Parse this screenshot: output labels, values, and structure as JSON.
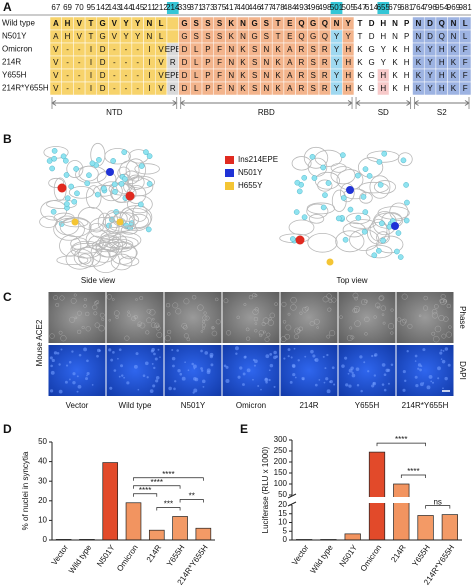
{
  "panel_labels": [
    "A",
    "B",
    "C",
    "D",
    "E"
  ],
  "alignment": {
    "positions": [
      67,
      69,
      70,
      95,
      142,
      143,
      144,
      145,
      211,
      212,
      214,
      339,
      371,
      373,
      375,
      417,
      440,
      446,
      477,
      478,
      484,
      493,
      496,
      498,
      501,
      505,
      547,
      614,
      655,
      679,
      681,
      764,
      796,
      954,
      969,
      981
    ],
    "highlight": [
      214,
      501,
      655
    ],
    "domains": [
      {
        "name": "NTD",
        "span": 11,
        "color": "#f7d36b"
      },
      {
        "name": "RBD",
        "span": 15,
        "color": "#f3b48c"
      },
      {
        "name": "SD",
        "span": 5,
        "color": "#ffffff"
      },
      {
        "name": "S2",
        "span": 5,
        "color": "#9db3e2"
      }
    ],
    "rows": [
      {
        "name": "Wild type",
        "residues": [
          "A",
          "H",
          "V",
          "T",
          "G",
          "V",
          "Y",
          "Y",
          "N",
          "L",
          null,
          "G",
          "S",
          "S",
          "S",
          "K",
          "N",
          "G",
          "S",
          "T",
          "E",
          "Q",
          "G",
          "Q",
          "N",
          "Y",
          "T",
          "D",
          "H",
          "N",
          "P",
          "N",
          "D",
          "Q",
          "N",
          "L"
        ]
      },
      {
        "name": "N501Y",
        "residues": [
          "A",
          "H",
          "V",
          "T",
          "G",
          "V",
          "Y",
          "Y",
          "N",
          "L",
          null,
          "G",
          "S",
          "S",
          "S",
          "K",
          "N",
          "G",
          "S",
          "T",
          "E",
          "Q",
          "G",
          "Q",
          "Y",
          "Y",
          "T",
          "D",
          "H",
          "N",
          "P",
          "N",
          "D",
          "Q",
          "N",
          "L"
        ]
      },
      {
        "name": "Omicron",
        "residues": [
          "V",
          "-",
          "-",
          "I",
          "D",
          "-",
          "-",
          "-",
          "I",
          "V",
          "EPE",
          "D",
          "L",
          "P",
          "F",
          "N",
          "K",
          "S",
          "N",
          "K",
          "A",
          "R",
          "S",
          "R",
          "Y",
          "H",
          "K",
          "G",
          "Y",
          "K",
          "H",
          "K",
          "Y",
          "H",
          "K",
          "F"
        ]
      },
      {
        "name": "214R",
        "residues": [
          "V",
          "-",
          "-",
          "I",
          "D",
          "-",
          "-",
          "-",
          "I",
          "V",
          "R",
          "D",
          "L",
          "P",
          "F",
          "N",
          "K",
          "S",
          "N",
          "K",
          "A",
          "R",
          "S",
          "R",
          "Y",
          "H",
          "K",
          "G",
          "Y",
          "K",
          "H",
          "K",
          "Y",
          "H",
          "K",
          "F"
        ]
      },
      {
        "name": "Y655H",
        "residues": [
          "V",
          "-",
          "-",
          "I",
          "D",
          "-",
          "-",
          "-",
          "I",
          "V",
          "EPE",
          "D",
          "L",
          "P",
          "F",
          "N",
          "K",
          "S",
          "N",
          "K",
          "A",
          "R",
          "S",
          "R",
          "Y",
          "H",
          "K",
          "G",
          "H",
          "K",
          "H",
          "K",
          "Y",
          "H",
          "K",
          "F"
        ]
      },
      {
        "name": "214R*Y655H",
        "residues": [
          "V",
          "-",
          "-",
          "I",
          "D",
          "-",
          "-",
          "-",
          "I",
          "V",
          "R",
          "D",
          "L",
          "P",
          "F",
          "N",
          "K",
          "S",
          "N",
          "K",
          "A",
          "R",
          "S",
          "R",
          "Y",
          "H",
          "K",
          "G",
          "H",
          "K",
          "H",
          "K",
          "Y",
          "H",
          "K",
          "F"
        ]
      }
    ]
  },
  "structure": {
    "legend": [
      {
        "name": "Ins214EPE",
        "color": "#e02a20"
      },
      {
        "name": "N501Y",
        "color": "#1f32d6"
      },
      {
        "name": "H655Y",
        "color": "#f4c534"
      }
    ],
    "views": [
      "Side view",
      "Top view"
    ]
  },
  "microscopy": {
    "cell_line": "Mouse ACE2",
    "channels": [
      "Phase",
      "DAPI"
    ],
    "samples": [
      "Vector",
      "Wild type",
      "N501Y",
      "Omicron",
      "214R",
      "Y655H",
      "214R*Y655H"
    ]
  },
  "chart_data": [
    {
      "type": "bar",
      "ylabel": "% of nuclei in syncytia",
      "categories": [
        "Vector",
        "Wild type",
        "N501Y",
        "Omicron",
        "214R",
        "Y655H",
        "214R*Y655H"
      ],
      "values": [
        0.3,
        0.3,
        39.5,
        19,
        5,
        12,
        6
      ],
      "colors": [
        "#ffffff",
        "#ffffff",
        "#e24a2a",
        "#f29460",
        "#f39a66",
        "#f39a66",
        "#f39a66"
      ],
      "ylim": [
        0,
        50
      ],
      "yticks": [
        0,
        10,
        20,
        30,
        40,
        50
      ],
      "comparisons": [
        {
          "from": 3,
          "to": 4,
          "label": "****"
        },
        {
          "from": 3,
          "to": 5,
          "label": "****"
        },
        {
          "from": 3,
          "to": 6,
          "label": "****"
        },
        {
          "from": 4,
          "to": 5,
          "label": "***"
        },
        {
          "from": 5,
          "to": 6,
          "label": "**"
        }
      ]
    },
    {
      "type": "bar",
      "ylabel": "Luciferase (RLU x 1000)",
      "categories": [
        "Vector",
        "Wild type",
        "N501Y",
        "Omicron",
        "214R",
        "Y655H",
        "214R*Y655H"
      ],
      "values": [
        0.3,
        0.3,
        3.5,
        245,
        100,
        14,
        14.5
      ],
      "colors": [
        "#ffffff",
        "#ffffff",
        "#f29460",
        "#e24a2a",
        "#f29460",
        "#f39a66",
        "#f39a66"
      ],
      "ylim": [
        0,
        300
      ],
      "axis_break": [
        20,
        50
      ],
      "yticks": [
        0,
        5,
        10,
        15,
        20,
        50,
        100,
        150,
        200,
        250,
        300
      ],
      "comparisons": [
        {
          "from": 3,
          "to": 5,
          "label": "****"
        },
        {
          "from": 4,
          "to": 5,
          "label": "****"
        },
        {
          "from": 5,
          "to": 6,
          "label": "ns"
        }
      ]
    }
  ]
}
